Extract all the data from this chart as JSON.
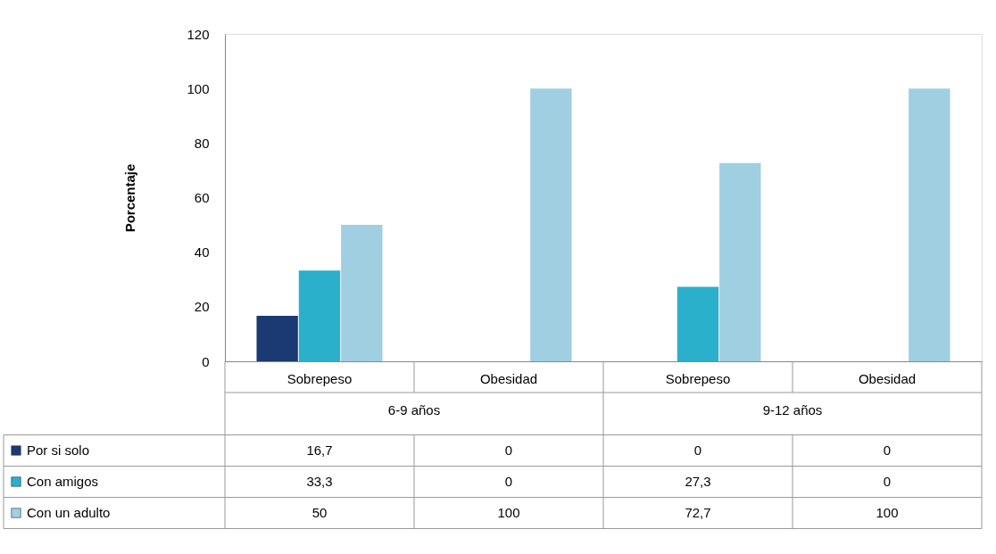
{
  "chart_data": {
    "type": "bar",
    "categories": [
      "Sobrepeso",
      "Obesidad",
      "Sobrepeso",
      "Obesidad"
    ],
    "ylabel": "Porcentaje",
    "ylim": [
      0,
      120
    ],
    "yticks": [
      0,
      20,
      40,
      60,
      80,
      100,
      120
    ],
    "annotations": [
      "6-9 años",
      "9-12 años"
    ],
    "series": [
      {
        "name": "Por si solo",
        "color": "#1b3a73",
        "values": [
          16.7,
          0,
          0,
          0
        ],
        "value_labels": [
          "16,7",
          "0",
          "0",
          "0"
        ]
      },
      {
        "name": "Con amigos",
        "color": "#2bb0cc",
        "values": [
          33.3,
          0,
          27.3,
          0
        ],
        "value_labels": [
          "33,3",
          "0",
          "27,3",
          "0"
        ]
      },
      {
        "name": "Con un adulto",
        "color": "#9fcfe0",
        "values": [
          50,
          100,
          72.7,
          100
        ],
        "value_labels": [
          "50",
          "100",
          "72,7",
          "100"
        ]
      }
    ],
    "legend": "bottom",
    "grid": false
  }
}
